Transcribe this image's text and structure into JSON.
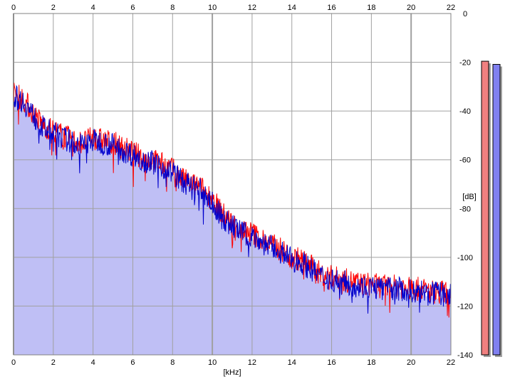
{
  "chart_data": {
    "type": "area",
    "xlabel": "[kHz]",
    "ylabel": "[dB]",
    "xlim": [
      0,
      22
    ],
    "ylim": [
      -140,
      0
    ],
    "x_ticks": [
      0,
      2,
      4,
      6,
      8,
      10,
      12,
      14,
      16,
      18,
      20,
      22
    ],
    "y_ticks": [
      0,
      -20,
      -40,
      -60,
      -80,
      -100,
      -120,
      -140
    ],
    "grid": true,
    "colors": {
      "fill": "#bfbff5",
      "series_left": "#ff0000",
      "series_right": "#0000cc",
      "meter_left": "#f08080",
      "meter_right": "#8080f0"
    },
    "series": [
      {
        "x": [
          0.0,
          0.5,
          1.0,
          1.5,
          2.0,
          2.5,
          3.0,
          3.5,
          4.0,
          4.5,
          5.0,
          5.5,
          6.0,
          6.5,
          7.0,
          7.5,
          8.0,
          8.5,
          9.0,
          9.5,
          10.0,
          10.5,
          11.0,
          11.5,
          12.0,
          12.5,
          13.0,
          13.5,
          14.0,
          14.5,
          15.0,
          15.5,
          16.0,
          16.5,
          17.0,
          17.5,
          18.0,
          18.5,
          19.0,
          19.5,
          20.0,
          20.5,
          21.0,
          21.5,
          22.0
        ],
        "values": [
          -33,
          -35,
          -41,
          -46,
          -48,
          -50,
          -52,
          -53,
          -51,
          -52,
          -53,
          -55,
          -57,
          -59,
          -60,
          -62,
          -64,
          -68,
          -70,
          -72,
          -76,
          -82,
          -86,
          -89,
          -90,
          -93,
          -95,
          -97,
          -100,
          -101,
          -104,
          -107,
          -108,
          -109,
          -110,
          -111,
          -111,
          -112,
          -112,
          -112,
          -113,
          -113,
          -114,
          -114,
          -115
        ]
      },
      {
        "x": [
          0.0,
          0.5,
          1.0,
          1.5,
          2.0,
          2.5,
          3.0,
          3.5,
          4.0,
          4.5,
          5.0,
          5.5,
          6.0,
          6.5,
          7.0,
          7.5,
          8.0,
          8.5,
          9.0,
          9.5,
          10.0,
          10.5,
          11.0,
          11.5,
          12.0,
          12.5,
          13.0,
          13.5,
          14.0,
          14.5,
          15.0,
          15.5,
          16.0,
          16.5,
          17.0,
          17.5,
          18.0,
          18.5,
          19.0,
          19.5,
          20.0,
          20.5,
          21.0,
          21.5,
          22.0
        ],
        "values": [
          -34,
          -36,
          -42,
          -47,
          -49,
          -51,
          -53,
          -54,
          -52,
          -53,
          -54,
          -56,
          -58,
          -60,
          -61,
          -63,
          -65,
          -69,
          -71,
          -73,
          -78,
          -84,
          -87,
          -90,
          -91,
          -94,
          -96,
          -98,
          -101,
          -102,
          -105,
          -108,
          -109,
          -110,
          -111,
          -112,
          -112,
          -113,
          -113,
          -113,
          -114,
          -114,
          -115,
          -115,
          -116
        ]
      }
    ],
    "meters": [
      {
        "fraction": 0.93
      },
      {
        "fraction": 0.92
      }
    ]
  }
}
